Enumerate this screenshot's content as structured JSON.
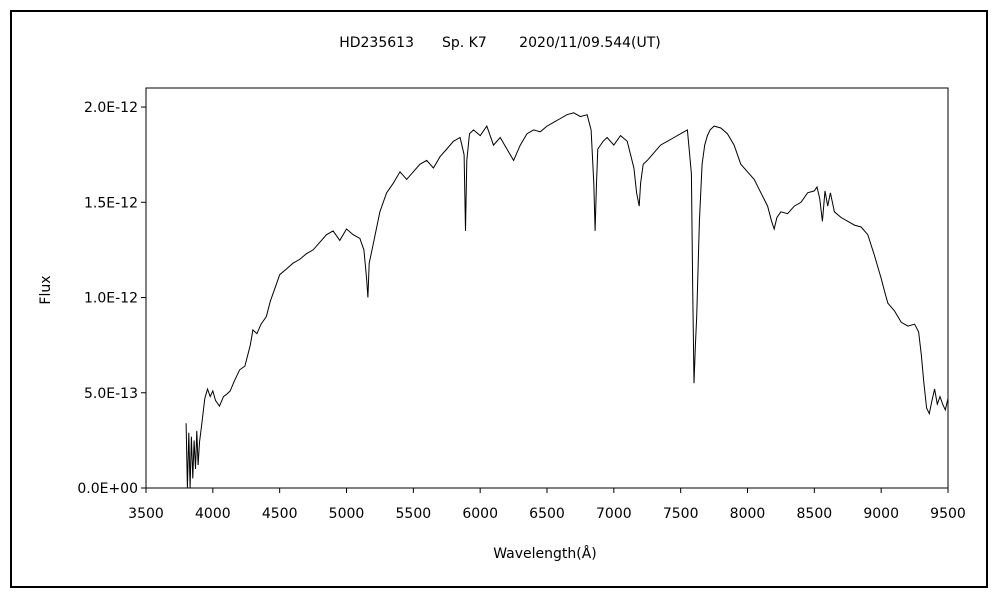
{
  "chart_data": {
    "type": "line",
    "title": "HD235613　　Sp. K7　　 2020/11/09.544(UT)",
    "xlabel": "Wavelength(Å)",
    "ylabel": "Flux",
    "xlim": [
      3500,
      9500
    ],
    "ylim": [
      0,
      2.1e-12
    ],
    "grid": false,
    "legend": "none",
    "line_color": "#000000",
    "x_ticks": [
      3500,
      4000,
      4500,
      5000,
      5500,
      6000,
      6500,
      7000,
      7500,
      8000,
      8500,
      9000,
      9500
    ],
    "x_tick_labels": [
      "3500",
      "4000",
      "4500",
      "5000",
      "5500",
      "6000",
      "6500",
      "7000",
      "7500",
      "8000",
      "8500",
      "9000",
      "9500"
    ],
    "y_ticks": [
      0,
      5e-13,
      1e-12,
      1.5e-12,
      2e-12
    ],
    "y_tick_labels": [
      "0.0E+00",
      "5.0E-13",
      "1.0E-12",
      "1.5E-12",
      "2.0E-12"
    ],
    "series": [
      {
        "x": [
          3800,
          3810,
          3820,
          3830,
          3840,
          3850,
          3860,
          3870,
          3880,
          3890,
          3900,
          3920,
          3940,
          3960,
          3980,
          4000,
          4020,
          4050,
          4080,
          4100,
          4130,
          4160,
          4200,
          4240,
          4280,
          4300,
          4330,
          4360,
          4400,
          4430,
          4470,
          4500,
          4550,
          4600,
          4650,
          4700,
          4750,
          4800,
          4850,
          4900,
          4950,
          5000,
          5050,
          5100,
          5130,
          5150,
          5160,
          5170,
          5200,
          5250,
          5300,
          5350,
          5400,
          5450,
          5500,
          5550,
          5600,
          5650,
          5700,
          5750,
          5800,
          5850,
          5880,
          5890,
          5900,
          5920,
          5950,
          6000,
          6050,
          6100,
          6150,
          6200,
          6250,
          6300,
          6350,
          6400,
          6450,
          6500,
          6550,
          6600,
          6650,
          6700,
          6750,
          6800,
          6830,
          6850,
          6860,
          6870,
          6880,
          6900,
          6920,
          6950,
          7000,
          7050,
          7100,
          7150,
          7170,
          7190,
          7200,
          7220,
          7250,
          7300,
          7350,
          7400,
          7450,
          7500,
          7550,
          7580,
          7590,
          7600,
          7610,
          7620,
          7640,
          7660,
          7680,
          7700,
          7720,
          7750,
          7800,
          7850,
          7900,
          7950,
          8000,
          8050,
          8100,
          8150,
          8180,
          8200,
          8220,
          8250,
          8300,
          8350,
          8400,
          8450,
          8500,
          8520,
          8540,
          8560,
          8580,
          8600,
          8620,
          8650,
          8700,
          8750,
          8800,
          8850,
          8900,
          8950,
          9000,
          9030,
          9050,
          9100,
          9150,
          9200,
          9250,
          9280,
          9300,
          9320,
          9340,
          9360,
          9380,
          9400,
          9420,
          9440,
          9460,
          9480,
          9500
        ],
        "y": [
          3.4e-13,
          0,
          2.9e-13,
          0,
          2.7e-13,
          5e-14,
          2.5e-13,
          1e-13,
          3e-13,
          1.2e-13,
          2.4e-13,
          3.5e-13,
          4.7e-13,
          5.2e-13,
          4.8e-13,
          5.1e-13,
          4.6e-13,
          4.3e-13,
          4.8e-13,
          4.9e-13,
          5.1e-13,
          5.6e-13,
          6.2e-13,
          6.4e-13,
          7.5e-13,
          8.3e-13,
          8.1e-13,
          8.6e-13,
          9e-13,
          9.8e-13,
          1.06e-12,
          1.12e-12,
          1.15e-12,
          1.18e-12,
          1.2e-12,
          1.23e-12,
          1.25e-12,
          1.29e-12,
          1.33e-12,
          1.35e-12,
          1.3e-12,
          1.36e-12,
          1.33e-12,
          1.31e-12,
          1.25e-12,
          1.1e-12,
          1e-12,
          1.18e-12,
          1.28e-12,
          1.45e-12,
          1.55e-12,
          1.6e-12,
          1.66e-12,
          1.62e-12,
          1.66e-12,
          1.7e-12,
          1.72e-12,
          1.68e-12,
          1.74e-12,
          1.78e-12,
          1.82e-12,
          1.84e-12,
          1.75e-12,
          1.35e-12,
          1.72e-12,
          1.86e-12,
          1.88e-12,
          1.85e-12,
          1.9e-12,
          1.8e-12,
          1.84e-12,
          1.78e-12,
          1.72e-12,
          1.8e-12,
          1.86e-12,
          1.88e-12,
          1.87e-12,
          1.9e-12,
          1.92e-12,
          1.94e-12,
          1.96e-12,
          1.97e-12,
          1.95e-12,
          1.96e-12,
          1.88e-12,
          1.6e-12,
          1.35e-12,
          1.6e-12,
          1.78e-12,
          1.8e-12,
          1.82e-12,
          1.84e-12,
          1.8e-12,
          1.85e-12,
          1.82e-12,
          1.68e-12,
          1.55e-12,
          1.48e-12,
          1.6e-12,
          1.7e-12,
          1.72e-12,
          1.76e-12,
          1.8e-12,
          1.82e-12,
          1.84e-12,
          1.86e-12,
          1.88e-12,
          1.65e-12,
          1.05e-12,
          5.5e-13,
          7.5e-13,
          9e-13,
          1.4e-12,
          1.7e-12,
          1.8e-12,
          1.85e-12,
          1.88e-12,
          1.9e-12,
          1.89e-12,
          1.86e-12,
          1.8e-12,
          1.7e-12,
          1.66e-12,
          1.62e-12,
          1.55e-12,
          1.48e-12,
          1.4e-12,
          1.36e-12,
          1.42e-12,
          1.45e-12,
          1.44e-12,
          1.48e-12,
          1.5e-12,
          1.55e-12,
          1.56e-12,
          1.58e-12,
          1.52e-12,
          1.4e-12,
          1.56e-12,
          1.48e-12,
          1.55e-12,
          1.45e-12,
          1.42e-12,
          1.4e-12,
          1.38e-12,
          1.37e-12,
          1.33e-12,
          1.22e-12,
          1.1e-12,
          1.02e-12,
          9.7e-13,
          9.3e-13,
          8.7e-13,
          8.5e-13,
          8.6e-13,
          8.2e-13,
          7e-13,
          5.5e-13,
          4.2e-13,
          3.9e-13,
          4.6e-13,
          5.2e-13,
          4.4e-13,
          4.8e-13,
          4.4e-13,
          4.1e-13,
          4.7e-13
        ]
      }
    ]
  }
}
